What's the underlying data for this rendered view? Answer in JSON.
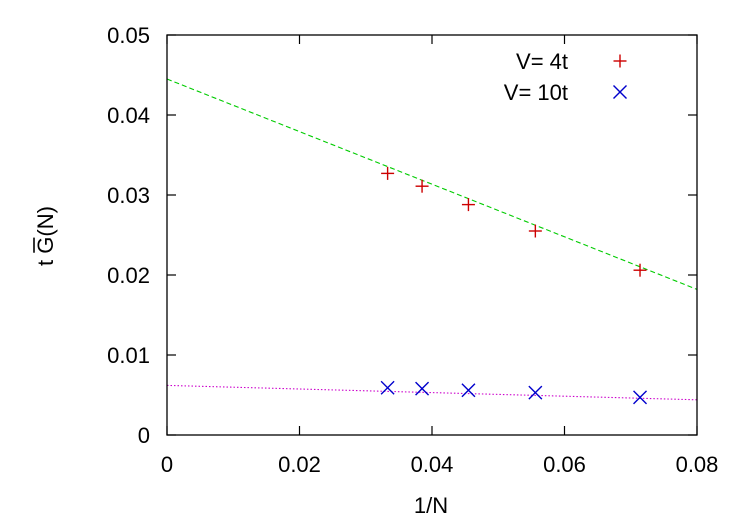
{
  "chart_data": {
    "type": "scatter",
    "xlabel": "1/N",
    "ylabel": "t G(N)",
    "ylabel_overline_char": "G",
    "xlim": [
      0,
      0.08
    ],
    "ylim": [
      0,
      0.05
    ],
    "xticks": [
      "0",
      "0.02",
      "0.04",
      "0.06",
      "0.08"
    ],
    "yticks": [
      "0",
      "0.01",
      "0.02",
      "0.03",
      "0.04",
      "0.05"
    ],
    "xtick_values": [
      0,
      0.02,
      0.04,
      0.06,
      0.08
    ],
    "ytick_values": [
      0,
      0.01,
      0.02,
      0.03,
      0.04,
      0.05
    ],
    "grid": false,
    "legend_position": "top-right",
    "series": [
      {
        "name": "V= 4t",
        "marker": "plus",
        "color": "#cc0000",
        "x": [
          0.0333,
          0.0385,
          0.0455,
          0.0556,
          0.0714
        ],
        "y": [
          0.0327,
          0.0311,
          0.0288,
          0.0255,
          0.0206
        ]
      },
      {
        "name": "V= 10t",
        "marker": "cross",
        "color": "#0000cc",
        "x": [
          0.0333,
          0.0385,
          0.0455,
          0.0556,
          0.0714
        ],
        "y": [
          0.0059,
          0.0058,
          0.0056,
          0.0053,
          0.0047
        ]
      }
    ],
    "fits": [
      {
        "color": "#00cc00",
        "style": "dashed",
        "x": [
          0,
          0.08
        ],
        "y": [
          0.0445,
          0.0182
        ]
      },
      {
        "color": "#cc00cc",
        "style": "dotted",
        "x": [
          0,
          0.08
        ],
        "y": [
          0.0062,
          0.0044
        ]
      }
    ]
  }
}
